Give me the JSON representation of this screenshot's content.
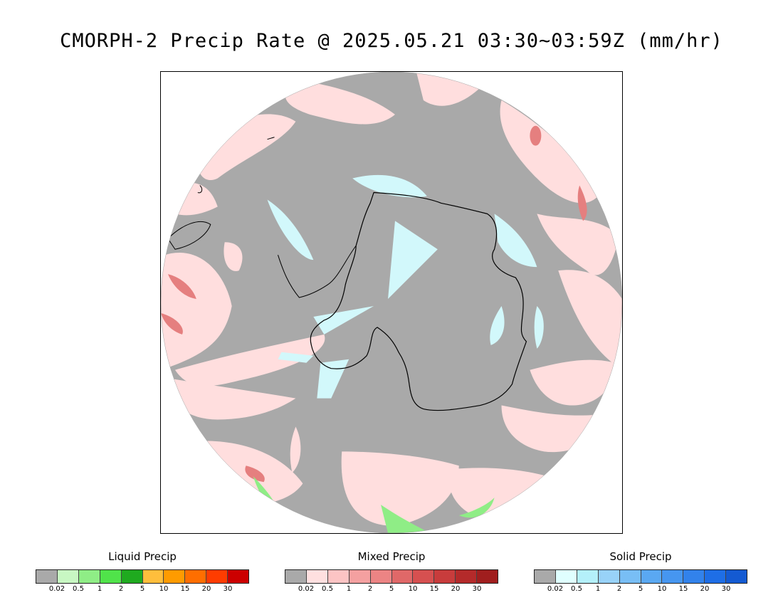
{
  "title": "CMORPH-2 Precip Rate @ 2025.05.21 03:30~03:59Z (mm/hr)",
  "map": {
    "projection": "south polar stereographic",
    "background_color": "#a9a9a9",
    "coast_color": "#000000"
  },
  "legends": [
    {
      "title": "Liquid Precip",
      "colors": [
        "#a9a9a9",
        "#c8f7c3",
        "#8fed86",
        "#50e34a",
        "#1faa1f",
        "#ffbe3c",
        "#ff9b00",
        "#ff6e00",
        "#ff3c00",
        "#cc0000"
      ],
      "ticks": [
        "0.02",
        "0.5",
        "1",
        "2",
        "5",
        "10",
        "15",
        "20",
        "30"
      ]
    },
    {
      "title": "Mixed Precip",
      "colors": [
        "#a9a9a9",
        "#ffe0e0",
        "#fcc4c4",
        "#f4a0a0",
        "#ec8484",
        "#e06868",
        "#d65050",
        "#c83c3c",
        "#b42a2a",
        "#a01e1e"
      ],
      "ticks": [
        "0.02",
        "0.5",
        "1",
        "2",
        "5",
        "10",
        "15",
        "20",
        "30"
      ]
    },
    {
      "title": "Solid Precip",
      "colors": [
        "#a9a9a9",
        "#e0ffff",
        "#b4f0fa",
        "#98d2f8",
        "#78bef5",
        "#5aa8f2",
        "#4696f0",
        "#3282eb",
        "#1e6ee6",
        "#145ad2"
      ],
      "ticks": [
        "0.02",
        "0.5",
        "1",
        "2",
        "5",
        "10",
        "15",
        "20",
        "30"
      ]
    }
  ]
}
